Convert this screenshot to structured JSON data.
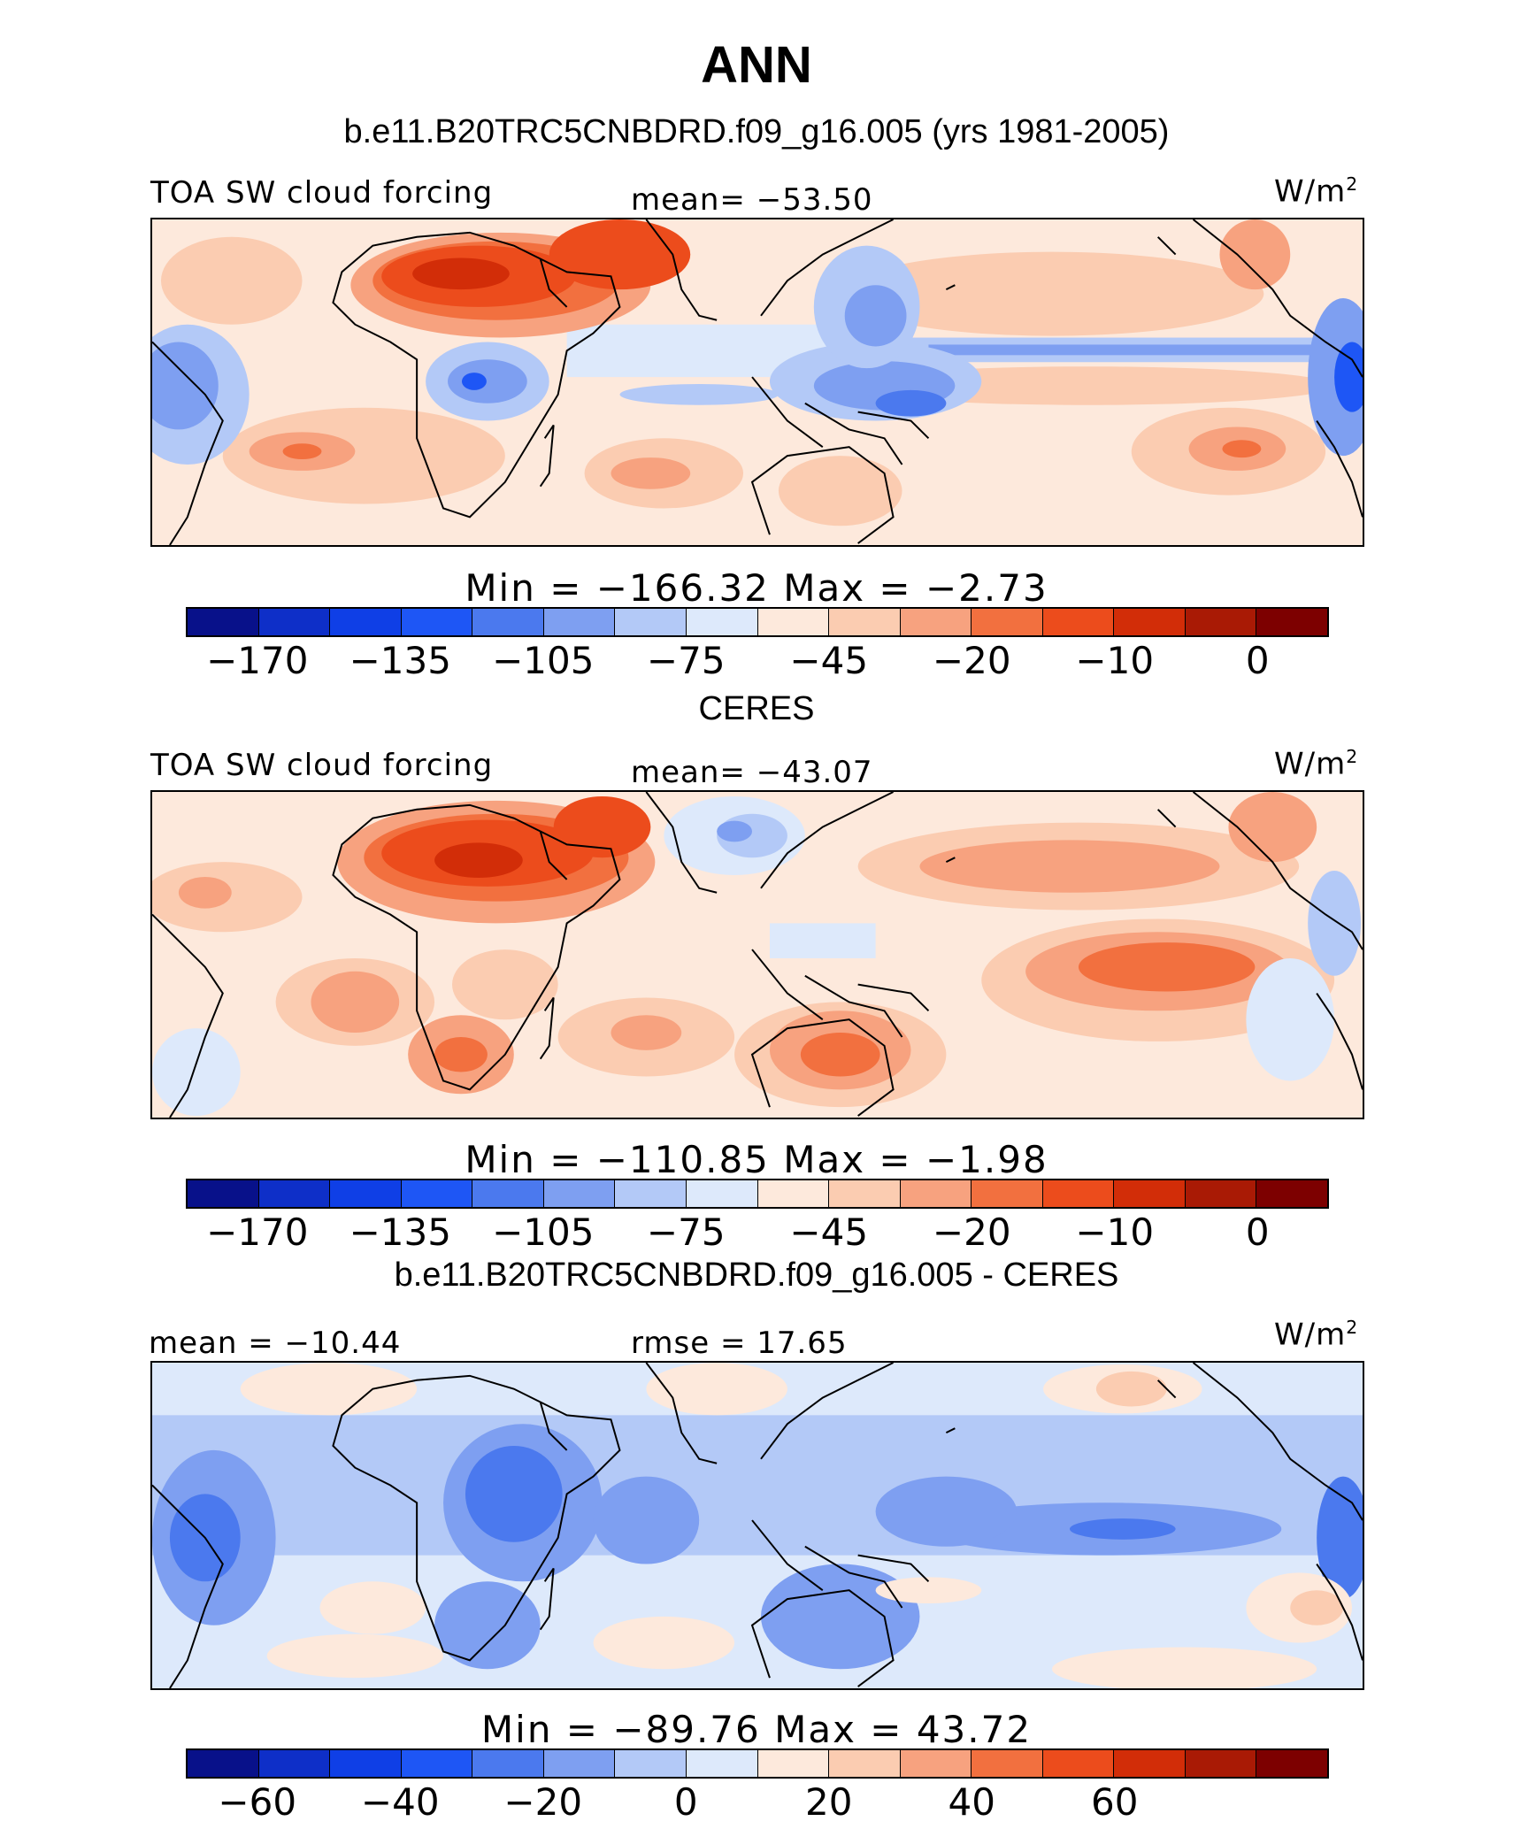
{
  "title": "ANN",
  "panels": [
    {
      "id": "model",
      "subtitle": "b.e11.B20TRC5CNBDRD.f09_g16.005 (yrs 1981-2005)",
      "left_label": "TOA SW cloud forcing",
      "center_label": "mean=  −53.50",
      "units": "W/m",
      "units_sup": "2",
      "min_max": "Min  =  −166.32  Max  =   −2.73",
      "colorbar": {
        "colors": [
          "#08118a",
          "#0e2fc8",
          "#0f3fe6",
          "#1e56f5",
          "#4b79ee",
          "#7e9ff1",
          "#b3c9f7",
          "#dde9fb",
          "#fde9dc",
          "#fbccb1",
          "#f7a27f",
          "#f2703f",
          "#ec4c1c",
          "#d22d08",
          "#a91a05",
          "#7d0000"
        ],
        "tick_labels": [
          "−170",
          "−135",
          "−105",
          "−75",
          "−45",
          "−20",
          "−10",
          "0"
        ]
      }
    },
    {
      "id": "obs",
      "subtitle": "CERES",
      "left_label": "TOA SW cloud forcing",
      "center_label": "mean=  −43.07",
      "units": "W/m",
      "units_sup": "2",
      "min_max": "Min  =  −110.85  Max  =   −1.98",
      "colorbar": {
        "colors": [
          "#08118a",
          "#0e2fc8",
          "#0f3fe6",
          "#1e56f5",
          "#4b79ee",
          "#7e9ff1",
          "#b3c9f7",
          "#dde9fb",
          "#fde9dc",
          "#fbccb1",
          "#f7a27f",
          "#f2703f",
          "#ec4c1c",
          "#d22d08",
          "#a91a05",
          "#7d0000"
        ],
        "tick_labels": [
          "−170",
          "−135",
          "−105",
          "−75",
          "−45",
          "−20",
          "−10",
          "0"
        ]
      }
    },
    {
      "id": "diff",
      "subtitle": "b.e11.B20TRC5CNBDRD.f09_g16.005 - CERES",
      "left_label": "mean  =  −10.44",
      "center_label": "rmse  =   17.65",
      "units": "W/m",
      "units_sup": "2",
      "min_max": "Min  =  −89.76  Max  =   43.72",
      "colorbar": {
        "colors": [
          "#08118a",
          "#0e2fc8",
          "#0f3fe6",
          "#1e56f5",
          "#4b79ee",
          "#7e9ff1",
          "#b3c9f7",
          "#dde9fb",
          "#fde9dc",
          "#fbccb1",
          "#f7a27f",
          "#f2703f",
          "#ec4c1c",
          "#d22d08",
          "#a91a05",
          "#7d0000"
        ],
        "tick_labels": [
          "−60",
          "−40",
          "−20",
          "0",
          "20",
          "40",
          "60"
        ]
      }
    }
  ]
}
